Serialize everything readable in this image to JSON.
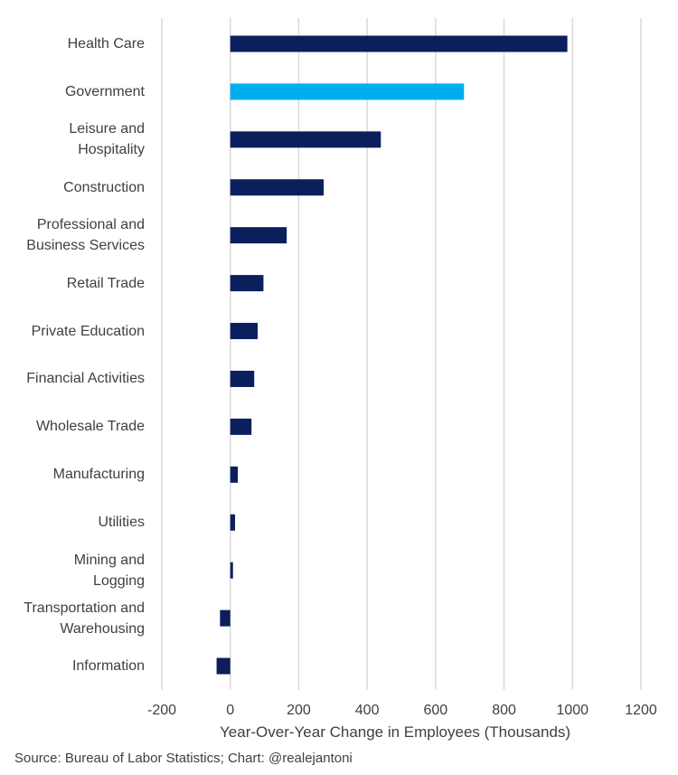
{
  "chart_data": {
    "type": "bar",
    "orientation": "horizontal",
    "title": "",
    "xlabel": "Year-Over-Year  Change in Employees (Thousands)",
    "ylabel": "",
    "xlim": [
      -200,
      1200
    ],
    "xticks": [
      -200,
      0,
      200,
      400,
      600,
      800,
      1000,
      1200
    ],
    "grid": true,
    "categories": [
      "Health Care",
      "Government",
      "Leisure and\nHospitality",
      "Construction",
      "Professional and\nBusiness Services",
      "Retail Trade",
      "Private Education",
      "Financial Activities",
      "Wholesale Trade",
      "Manufacturing",
      "Utilities",
      "Mining and\nLogging",
      "Transportation and\nWarehousing",
      "Information"
    ],
    "values": [
      985,
      683,
      440,
      273,
      165,
      97,
      80,
      70,
      62,
      22,
      14,
      8,
      -30,
      -40
    ],
    "highlight_category": "Government",
    "bar_color": "#0b1f5c",
    "highlight_color": "#00adef",
    "grid_color": "#d9d9d9"
  },
  "source": "Source: Bureau of Labor Statistics; Chart: @realejantoni"
}
